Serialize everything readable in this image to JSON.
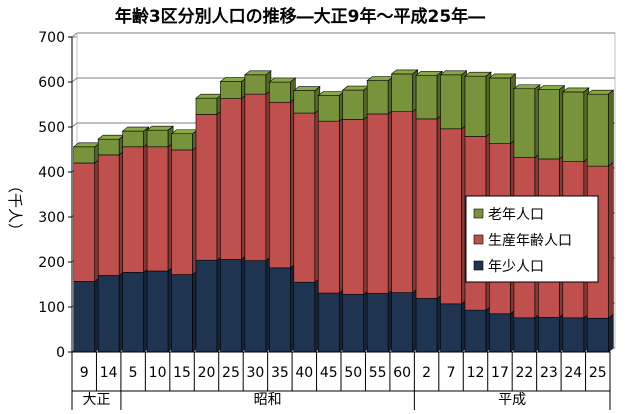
{
  "chart_data": {
    "type": "bar",
    "stacked": true,
    "title": "年齢3区分別人口の推移―大正9年～平成25年―",
    "ylabel": "（千人）",
    "ylim": [
      0,
      700
    ],
    "yticks": [
      "0",
      "100",
      "200",
      "300",
      "400",
      "500",
      "600",
      "700"
    ],
    "grid": true,
    "legend_position": "right",
    "categories": [
      "9",
      "14",
      "5",
      "10",
      "15",
      "20",
      "25",
      "30",
      "35",
      "40",
      "45",
      "50",
      "55",
      "60",
      "2",
      "7",
      "12",
      "17",
      "22",
      "23",
      "24",
      "25"
    ],
    "eras": [
      {
        "label": "大正",
        "start": 0,
        "count": 2
      },
      {
        "label": "昭和",
        "start": 2,
        "count": 12
      },
      {
        "label": "平成",
        "start": 14,
        "count": 8
      }
    ],
    "series": [
      {
        "name": "年少人口",
        "color": "#1f3450",
        "values": [
          157,
          170,
          177,
          180,
          172,
          204,
          206,
          203,
          187,
          155,
          131,
          128,
          130,
          132,
          119,
          107,
          93,
          85,
          76,
          77,
          76,
          75
        ]
      },
      {
        "name": "生産年齢人口",
        "color": "#c0504d",
        "values": [
          263,
          268,
          279,
          276,
          277,
          324,
          357,
          370,
          368,
          376,
          382,
          389,
          399,
          402,
          399,
          389,
          386,
          378,
          356,
          352,
          347,
          338
        ]
      },
      {
        "name": "老年人口",
        "color": "#77933c",
        "values": [
          36,
          35,
          35,
          37,
          36,
          36,
          38,
          43,
          45,
          50,
          57,
          65,
          74,
          84,
          97,
          120,
          134,
          146,
          153,
          154,
          155,
          160
        ]
      }
    ]
  }
}
